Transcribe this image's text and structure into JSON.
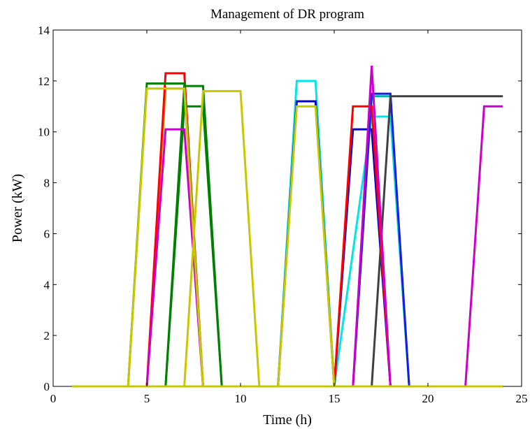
{
  "chart_data": {
    "type": "line",
    "title": "Management of DR program",
    "xlabel": "Time (h)",
    "ylabel": "Power (kW)",
    "xlim": [
      0,
      25
    ],
    "ylim": [
      0,
      14
    ],
    "xticks": [
      0,
      5,
      10,
      15,
      20,
      25
    ],
    "yticks": [
      0,
      2,
      4,
      6,
      8,
      10,
      12,
      14
    ],
    "xtick_labels": [
      "0",
      "5",
      "10",
      "15",
      "20",
      "25"
    ],
    "ytick_labels": [
      "0",
      "2",
      "4",
      "6",
      "8",
      "10",
      "12",
      "14"
    ],
    "grid": false,
    "legend": null,
    "series": [
      {
        "color": "#00e5e5",
        "x": [
          1,
          12,
          13,
          14,
          15,
          17,
          18,
          19,
          24
        ],
        "y": [
          0,
          0,
          12.0,
          12.0,
          0,
          10.6,
          10.6,
          0,
          0
        ]
      },
      {
        "color": "#ff8c1a",
        "x": [
          1,
          5,
          6,
          7,
          8,
          24
        ],
        "y": [
          0,
          0,
          11.7,
          11.7,
          0,
          0
        ]
      },
      {
        "color": "#0000cc",
        "x": [
          1,
          12,
          13,
          14,
          15,
          16,
          17,
          18,
          24
        ],
        "y": [
          0,
          0,
          11.2,
          11.2,
          0,
          10.1,
          10.1,
          0,
          0
        ]
      },
      {
        "color": "#00b3b3",
        "x": [
          1,
          16,
          17,
          18,
          19,
          24
        ],
        "y": [
          0,
          0,
          11.4,
          11.4,
          0,
          0
        ]
      },
      {
        "color": "#1a1ae6",
        "x": [
          1,
          16,
          17,
          18,
          19,
          24
        ],
        "y": [
          0,
          0,
          11.5,
          11.5,
          0,
          0
        ]
      },
      {
        "color": "#404040",
        "x": [
          1,
          17,
          18,
          24
        ],
        "y": [
          0,
          0,
          11.4,
          11.4
        ]
      },
      {
        "color": "#ff0000",
        "x": [
          1,
          5,
          6,
          7,
          8,
          15,
          16,
          17,
          18,
          24
        ],
        "y": [
          0,
          0,
          12.3,
          12.3,
          0,
          0,
          11.0,
          11.0,
          0,
          0
        ]
      },
      {
        "color": "#008000",
        "x": [
          1,
          4,
          5,
          7,
          8,
          24
        ],
        "y": [
          0,
          0,
          11.9,
          11.9,
          0,
          0
        ]
      },
      {
        "color": "#008000",
        "x": [
          1,
          6,
          7,
          8,
          9,
          24
        ],
        "y": [
          0,
          0,
          11.0,
          11.0,
          0,
          0
        ]
      },
      {
        "color": "#008000",
        "x": [
          1,
          6,
          7,
          8,
          9,
          24
        ],
        "y": [
          0,
          0,
          11.8,
          11.8,
          0,
          0
        ]
      },
      {
        "color": "#cc00cc",
        "x": [
          1,
          5,
          6,
          7,
          8,
          12,
          16,
          17,
          18,
          22,
          23,
          24
        ],
        "y": [
          0,
          0,
          10.1,
          10.1,
          0,
          0,
          0,
          12.6,
          0,
          0,
          11.0,
          11.0
        ]
      },
      {
        "color": "#c8c800",
        "x": [
          1,
          4,
          5,
          7,
          8,
          24
        ],
        "y": [
          0,
          0,
          11.7,
          11.7,
          0,
          0
        ]
      },
      {
        "color": "#c8c800",
        "x": [
          1,
          7,
          8,
          10,
          11,
          24
        ],
        "y": [
          0,
          0,
          11.6,
          11.6,
          0,
          0
        ]
      },
      {
        "color": "#c8c800",
        "x": [
          1,
          12,
          13,
          14,
          15,
          24
        ],
        "y": [
          0,
          0,
          11.0,
          11.0,
          0,
          0
        ]
      }
    ]
  }
}
